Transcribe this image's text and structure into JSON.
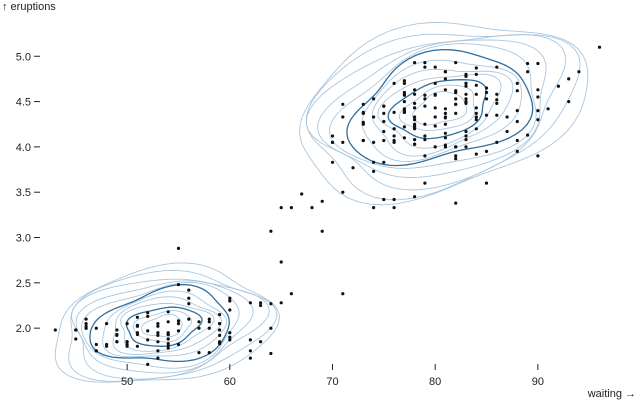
{
  "chart_data": {
    "type": "scatter",
    "title": "",
    "xlabel": "waiting →",
    "ylabel": "↑ eruptions",
    "xlim": [
      42,
      98
    ],
    "ylim": [
      1.45,
      5.4
    ],
    "x_ticks": [
      "50",
      "60",
      "70",
      "80",
      "90"
    ],
    "y_ticks": [
      "2.0",
      "2.5",
      "3.0",
      "3.5",
      "4.0",
      "4.5",
      "5.0"
    ],
    "grid": false,
    "legend": "none",
    "colors": {
      "points": "#111111",
      "contour_light": "#a9c7e0",
      "contour_dark": "#2f6f9f"
    },
    "density_overlay": {
      "kind": "2d-kde-contours",
      "clusters": [
        {
          "cx": 53.5,
          "cy": 2.02,
          "sx": 6.2,
          "sy": 0.36,
          "rot": 8
        },
        {
          "cx": 80.5,
          "cy": 4.42,
          "sx": 8.2,
          "sy": 0.52,
          "rot": 15
        }
      ],
      "levels_per_cluster": 12,
      "emphasized_levels": [
        5,
        9
      ]
    },
    "series": [
      {
        "points": [
          [
            79,
            3.6
          ],
          [
            54,
            1.8
          ],
          [
            74,
            3.33
          ],
          [
            62,
            2.28
          ],
          [
            85,
            4.53
          ],
          [
            55,
            2.88
          ],
          [
            88,
            4.7
          ],
          [
            85,
            3.6
          ],
          [
            51,
            1.95
          ],
          [
            85,
            4.35
          ],
          [
            54,
            1.83
          ],
          [
            84,
            3.92
          ],
          [
            78,
            4.2
          ],
          [
            47,
            1.75
          ],
          [
            83,
            4.7
          ],
          [
            52,
            2.17
          ],
          [
            62,
            1.75
          ],
          [
            84,
            4.8
          ],
          [
            52,
            1.6
          ],
          [
            79,
            4.25
          ],
          [
            51,
            1.8
          ],
          [
            47,
            1.75
          ],
          [
            78,
            3.45
          ],
          [
            69,
            3.07
          ],
          [
            74,
            4.53
          ],
          [
            83,
            4.08
          ],
          [
            55,
            2.05
          ],
          [
            76,
            4.7
          ],
          [
            78,
            4.33
          ],
          [
            79,
            3.9
          ],
          [
            73,
            4.25
          ],
          [
            77,
            4.38
          ],
          [
            66,
            3.33
          ],
          [
            80,
            4.57
          ],
          [
            74,
            3.73
          ],
          [
            52,
            1.97
          ],
          [
            48,
            2.05
          ],
          [
            80,
            4.58
          ],
          [
            59,
            1.85
          ],
          [
            90,
            4.3
          ],
          [
            80,
            4.88
          ],
          [
            58,
            1.73
          ],
          [
            84,
            4.3
          ],
          [
            58,
            2.0
          ],
          [
            73,
            4.27
          ],
          [
            83,
            4.12
          ],
          [
            64,
            2.0
          ],
          [
            53,
            2.05
          ],
          [
            82,
            4.0
          ],
          [
            59,
            1.98
          ],
          [
            75,
            4.37
          ],
          [
            90,
            4.55
          ],
          [
            54,
            1.93
          ],
          [
            80,
            4.0
          ],
          [
            54,
            2.18
          ],
          [
            83,
            4.67
          ],
          [
            71,
            4.33
          ],
          [
            64,
            3.07
          ],
          [
            77,
            4.57
          ],
          [
            81,
            4.0
          ],
          [
            59,
            1.83
          ],
          [
            84,
            4.33
          ],
          [
            48,
            1.8
          ],
          [
            82,
            3.87
          ],
          [
            60,
            1.95
          ],
          [
            92,
            4.67
          ],
          [
            78,
            4.93
          ],
          [
            78,
            4.03
          ],
          [
            65,
            2.28
          ],
          [
            73,
            4.37
          ],
          [
            82,
            4.47
          ],
          [
            56,
            2.1
          ],
          [
            79,
            4.88
          ],
          [
            71,
            3.5
          ],
          [
            62,
            1.67
          ],
          [
            76,
            4.05
          ],
          [
            60,
            2.3
          ],
          [
            78,
            4.23
          ],
          [
            76,
            4.07
          ],
          [
            83,
            4.0
          ],
          [
            75,
            4.45
          ],
          [
            82,
            3.38
          ],
          [
            70,
            4.05
          ],
          [
            65,
            3.33
          ],
          [
            73,
            4.47
          ],
          [
            88,
            4.28
          ],
          [
            76,
            3.33
          ],
          [
            80,
            4.7
          ],
          [
            48,
            1.82
          ],
          [
            86,
            4.35
          ],
          [
            60,
            1.9
          ],
          [
            90,
            4.92
          ],
          [
            50,
            2.05
          ],
          [
            78,
            4.48
          ],
          [
            63,
            2.25
          ],
          [
            72,
            3.77
          ],
          [
            84,
            4.43
          ],
          [
            75,
            3.42
          ],
          [
            51,
            2.03
          ],
          [
            82,
            4.93
          ],
          [
            62,
            1.87
          ],
          [
            88,
            3.95
          ],
          [
            49,
            1.98
          ],
          [
            83,
            4.58
          ],
          [
            81,
            4.1
          ],
          [
            47,
            2.0
          ],
          [
            84,
            4.2
          ],
          [
            52,
            2.13
          ],
          [
            86,
            4.88
          ],
          [
            81,
            4.25
          ],
          [
            75,
            4.45
          ],
          [
            59,
            2.15
          ],
          [
            89,
            4.83
          ],
          [
            79,
            4.12
          ],
          [
            59,
            2.05
          ],
          [
            81,
            4.15
          ],
          [
            50,
            1.85
          ],
          [
            85,
            4.65
          ],
          [
            59,
            1.92
          ],
          [
            87,
            4.33
          ],
          [
            53,
            1.85
          ],
          [
            69,
            3.4
          ],
          [
            77,
            4.22
          ],
          [
            56,
            2.42
          ],
          [
            88,
            4.07
          ],
          [
            81,
            4.32
          ],
          [
            45,
            1.98
          ],
          [
            82,
            3.9
          ],
          [
            55,
            2.48
          ],
          [
            90,
            3.9
          ],
          [
            45,
            1.98
          ],
          [
            83,
            4.48
          ],
          [
            56,
            2.33
          ],
          [
            89,
            4.92
          ],
          [
            46,
            2.05
          ],
          [
            82,
            4.6
          ],
          [
            51,
            2.02
          ],
          [
            86,
            4.05
          ],
          [
            53,
            2.02
          ],
          [
            79,
            4.57
          ],
          [
            81,
            4.42
          ],
          [
            60,
            2.33
          ],
          [
            82,
            4.47
          ],
          [
            77,
            4.38
          ],
          [
            76,
            3.42
          ],
          [
            59,
            2.05
          ],
          [
            80,
            4.43
          ],
          [
            49,
            1.92
          ],
          [
            96,
            5.1
          ],
          [
            53,
            1.75
          ],
          [
            77,
            4.58
          ],
          [
            77,
            4.42
          ],
          [
            65,
            2.73
          ],
          [
            81,
            4.63
          ],
          [
            71,
            4.47
          ],
          [
            70,
            3.83
          ],
          [
            81,
            4.37
          ],
          [
            93,
            4.5
          ],
          [
            53,
            1.67
          ],
          [
            89,
            4.13
          ],
          [
            45,
            1.88
          ],
          [
            86,
            4.58
          ],
          [
            58,
            2.07
          ],
          [
            78,
            4.03
          ],
          [
            66,
            2.38
          ],
          [
            76,
            4.12
          ],
          [
            63,
            2.28
          ],
          [
            88,
            4.62
          ],
          [
            52,
            1.87
          ],
          [
            93,
            4.75
          ],
          [
            49,
            1.85
          ],
          [
            57,
            1.73
          ],
          [
            77,
            4.5
          ],
          [
            68,
            3.33
          ],
          [
            81,
            4.83
          ],
          [
            81,
            4.02
          ],
          [
            73,
            4.07
          ],
          [
            50,
            1.8
          ],
          [
            85,
            3.95
          ],
          [
            74,
            4.05
          ],
          [
            55,
            1.82
          ],
          [
            77,
            4.73
          ],
          [
            83,
            4.78
          ],
          [
            83,
            4.7
          ],
          [
            51,
            2.12
          ],
          [
            78,
            4.25
          ],
          [
            84,
            4.58
          ],
          [
            46,
            2.1
          ],
          [
            83,
            4.5
          ],
          [
            55,
            2.08
          ],
          [
            81,
            4.83
          ],
          [
            57,
            2.07
          ],
          [
            76,
            4.2
          ],
          [
            84,
            4.87
          ],
          [
            77,
            4.1
          ],
          [
            81,
            4.33
          ],
          [
            87,
            4.17
          ],
          [
            77,
            4.4
          ],
          [
            51,
            1.93
          ],
          [
            78,
            4.08
          ],
          [
            60,
            1.87
          ],
          [
            82,
            4.53
          ],
          [
            91,
            4.42
          ],
          [
            53,
            1.92
          ],
          [
            78,
            4.22
          ],
          [
            46,
            2.0
          ],
          [
            77,
            4.6
          ],
          [
            84,
            4.68
          ],
          [
            49,
            1.85
          ],
          [
            83,
            4.78
          ],
          [
            71,
            2.38
          ],
          [
            80,
            4.23
          ],
          [
            49,
            1.93
          ],
          [
            75,
            4.07
          ],
          [
            64,
            1.72
          ],
          [
            76,
            4.38
          ],
          [
            53,
            1.95
          ],
          [
            94,
            4.83
          ],
          [
            55,
            1.97
          ],
          [
            76,
            4.2
          ],
          [
            50,
            1.82
          ],
          [
            82,
            4.62
          ],
          [
            54,
            1.93
          ],
          [
            75,
            4.17
          ],
          [
            78,
            4.63
          ],
          [
            79,
            4.93
          ],
          [
            78,
            4.43
          ],
          [
            78,
            4.58
          ],
          [
            70,
            4.05
          ],
          [
            79,
            4.08
          ],
          [
            70,
            4.12
          ],
          [
            54,
            1.88
          ],
          [
            86,
            4.48
          ],
          [
            50,
            1.85
          ],
          [
            90,
            4.4
          ],
          [
            54,
            1.95
          ],
          [
            54,
            1.78
          ],
          [
            77,
            4.7
          ],
          [
            79,
            4.45
          ],
          [
            64,
            2.27
          ],
          [
            75,
            3.83
          ],
          [
            47,
            1.82
          ],
          [
            86,
            4.52
          ],
          [
            63,
            1.85
          ],
          [
            85,
            4.6
          ],
          [
            82,
            4.0
          ],
          [
            57,
            2.0
          ],
          [
            82,
            4.37
          ],
          [
            67,
            3.48
          ],
          [
            74,
            3.83
          ],
          [
            54,
            2.07
          ],
          [
            83,
            4.17
          ],
          [
            73,
            4.07
          ],
          [
            73,
            4.38
          ],
          [
            88,
            4.4
          ],
          [
            80,
            4.33
          ],
          [
            71,
            4.05
          ],
          [
            83,
            4.53
          ],
          [
            56,
            2.27
          ],
          [
            79,
            4.53
          ],
          [
            78,
            4.3
          ],
          [
            84,
            4.37
          ],
          [
            58,
            2.1
          ],
          [
            83,
            4.8
          ],
          [
            43,
            1.98
          ],
          [
            60,
            2.2
          ],
          [
            75,
            4.28
          ],
          [
            81,
            4.75
          ],
          [
            46,
            2.02
          ],
          [
            90,
            4.63
          ],
          [
            46,
            2.0
          ],
          [
            74,
            4.33
          ]
        ]
      }
    ]
  }
}
